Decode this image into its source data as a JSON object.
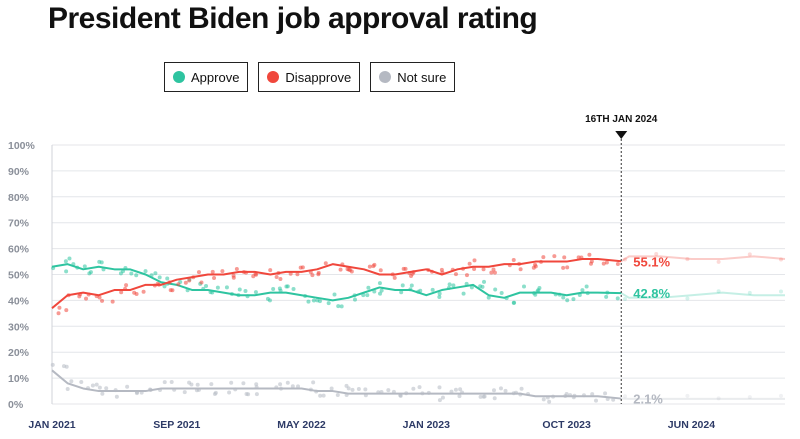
{
  "chart_data": {
    "type": "line",
    "title": "President Biden job approval rating",
    "ylim": [
      0,
      100
    ],
    "y_ticks": [
      "100%",
      "90%",
      "80%",
      "70%",
      "60%",
      "50%",
      "40%",
      "30%",
      "20%",
      "10%",
      "0%"
    ],
    "x_ticks": [
      "JAN 2021",
      "SEP 2021",
      "MAY 2022",
      "JAN 2023",
      "OCT 2023",
      "JUN 2024"
    ],
    "x_tick_months": [
      0,
      8,
      16,
      24,
      33,
      41
    ],
    "x_range_months": [
      0,
      47
    ],
    "marker": {
      "label": "16TH JAN 2024",
      "month": 36.5
    },
    "legend_position": "top-left",
    "grid": "horizontal",
    "series": [
      {
        "name": "Approve",
        "color": "#2ec4a0",
        "end_label": "42.8%",
        "months": [
          0,
          1,
          2,
          3,
          4,
          5,
          6,
          7,
          8,
          9,
          10,
          11,
          12,
          13,
          14,
          15,
          16,
          17,
          18,
          19,
          20,
          21,
          22,
          23,
          24,
          25,
          26,
          27,
          28,
          29,
          30,
          31,
          32,
          33,
          34,
          35,
          36.5
        ],
        "values": [
          53,
          54,
          52,
          53,
          52,
          52,
          50,
          47,
          46,
          44,
          44,
          43,
          42,
          42,
          43,
          43,
          42,
          41,
          40,
          41,
          43,
          45,
          44,
          44,
          42,
          44,
          45,
          46,
          42,
          41,
          43,
          43,
          43,
          42,
          43,
          43,
          42.8
        ],
        "future_months": [
          37,
          39,
          41,
          43,
          45,
          47
        ],
        "future_values": [
          41,
          41,
          42,
          43,
          42,
          42
        ]
      },
      {
        "name": "Disapprove",
        "color": "#f0473c",
        "end_label": "55.1%",
        "months": [
          0,
          1,
          2,
          3,
          4,
          5,
          6,
          7,
          8,
          9,
          10,
          11,
          12,
          13,
          14,
          15,
          16,
          17,
          18,
          19,
          20,
          21,
          22,
          23,
          24,
          25,
          26,
          27,
          28,
          29,
          30,
          31,
          32,
          33,
          34,
          35,
          36.5
        ],
        "values": [
          37,
          42,
          43,
          42,
          44,
          44,
          46,
          46,
          48,
          49,
          50,
          50,
          51,
          51,
          50,
          51,
          51,
          52,
          54,
          53,
          52,
          50,
          50,
          51,
          52,
          50,
          52,
          53,
          53,
          54,
          54,
          55,
          55,
          55,
          56,
          56,
          55.1
        ],
        "future_months": [
          37,
          39,
          41,
          43,
          45,
          47
        ],
        "future_values": [
          57,
          57,
          56,
          56,
          57,
          56
        ]
      },
      {
        "name": "Not sure",
        "color": "#b5b9c2",
        "end_label": "2.1%",
        "months": [
          0,
          1,
          2,
          3,
          4,
          5,
          6,
          7,
          8,
          9,
          10,
          11,
          12,
          13,
          14,
          15,
          16,
          17,
          18,
          19,
          20,
          21,
          22,
          23,
          24,
          25,
          26,
          27,
          28,
          29,
          30,
          31,
          32,
          33,
          34,
          35,
          36.5
        ],
        "values": [
          13,
          8,
          6,
          5,
          5,
          5,
          5,
          6,
          6,
          6,
          6,
          6,
          6,
          6,
          6,
          6,
          6,
          5,
          5,
          4,
          4,
          4,
          4,
          4,
          4,
          4,
          4,
          4,
          4,
          4,
          4,
          3,
          3,
          3,
          3,
          3,
          2.1
        ],
        "future_months": [
          37,
          39,
          41,
          43,
          45,
          47
        ],
        "future_values": [
          2,
          2,
          2,
          2,
          2,
          2
        ]
      }
    ]
  }
}
